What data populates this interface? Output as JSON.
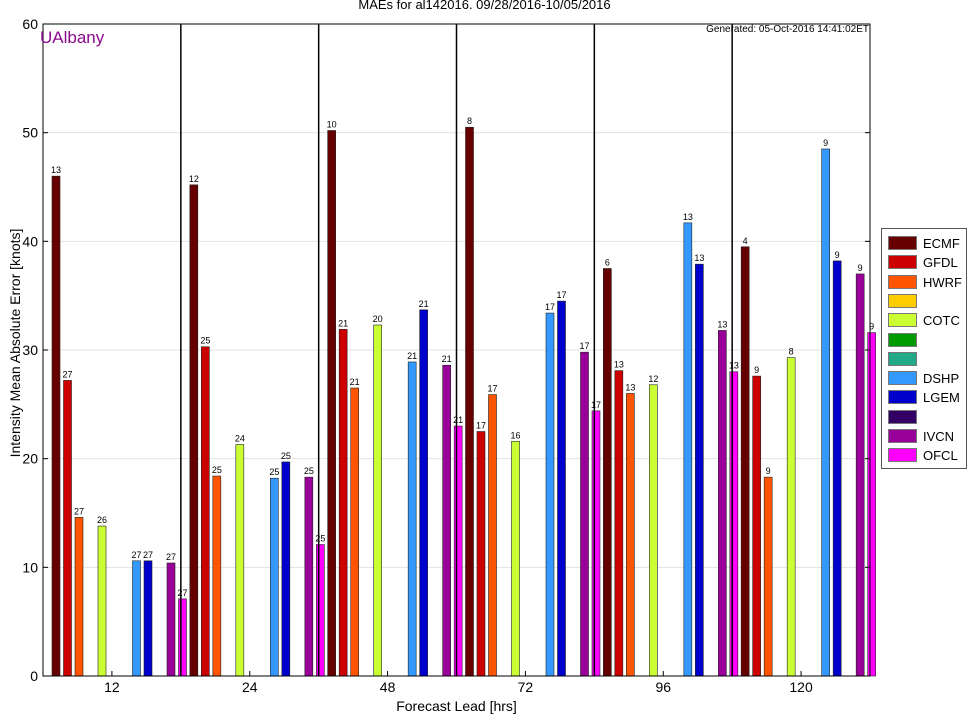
{
  "page": {
    "title": "MAEs for al142016. 09/28/2016-10/05/2016",
    "brand": "UAlbany",
    "generated": "Generated: 05-Oct-2016 14:41:02ET"
  },
  "colors": {
    "brand": "#8b0a8b",
    "ECMF": "#660000",
    "GFDL": "#cc0000",
    "HWRF": "#ff5500",
    "COTC": "#ccff33",
    "DSHP": "#3399ff",
    "LGEM": "#0000cc",
    "IVCN": "#990099",
    "OFCL": "#ff00ff"
  },
  "legend": [
    {
      "label": "ECMF",
      "color": "#660000"
    },
    {
      "label": "GFDL",
      "color": "#cc0000"
    },
    {
      "label": "HWRF",
      "color": "#ff5500"
    },
    {
      "label": "",
      "color": "#ffcc00"
    },
    {
      "label": "COTC",
      "color": "#ccff33"
    },
    {
      "label": "",
      "color": "#009900"
    },
    {
      "label": "",
      "color": "#22aa88"
    },
    {
      "label": "DSHP",
      "color": "#3399ff"
    },
    {
      "label": "LGEM",
      "color": "#0000cc"
    },
    {
      "label": "",
      "color": "#330066"
    },
    {
      "label": "IVCN",
      "color": "#990099"
    },
    {
      "label": "OFCL",
      "color": "#ff00ff"
    }
  ],
  "chart_data": {
    "type": "bar",
    "title": "MAEs for al142016. 09/28/2016-10/05/2016",
    "xlabel": "Forecast Lead [hrs]",
    "ylabel": "Intensity Mean Absolute Error [knots]",
    "ylim": [
      0,
      60
    ],
    "yticks": [
      0,
      10,
      20,
      30,
      40,
      50,
      60
    ],
    "grid": true,
    "legend_position": "right",
    "categories": [
      "12",
      "24",
      "48",
      "72",
      "96",
      "120"
    ],
    "slot_order": [
      "ECMF",
      "GFDL",
      "HWRF",
      "",
      "COTC",
      "",
      "",
      "DSHP",
      "LGEM",
      "",
      "IVCN",
      "OFCL"
    ],
    "series": [
      {
        "name": "ECMF",
        "color": "#660000",
        "values": [
          46.0,
          45.2,
          50.2,
          50.5,
          37.5,
          39.5
        ],
        "counts": [
          "13",
          "12",
          "10",
          "8",
          "6",
          "4"
        ]
      },
      {
        "name": "GFDL",
        "color": "#cc0000",
        "values": [
          27.2,
          30.3,
          31.9,
          22.5,
          28.1,
          27.6
        ],
        "counts": [
          "27",
          "25",
          "21",
          "17",
          "13",
          "9"
        ]
      },
      {
        "name": "HWRF",
        "color": "#ff5500",
        "values": [
          14.6,
          18.4,
          26.5,
          25.9,
          26.0,
          18.3
        ],
        "counts": [
          "27",
          "25",
          "21",
          "17",
          "13",
          "9"
        ]
      },
      {
        "name": "COTC",
        "color": "#ccff33",
        "values": [
          13.8,
          21.3,
          32.3,
          21.6,
          26.8,
          29.3
        ],
        "counts": [
          "26",
          "24",
          "20",
          "16",
          "12",
          "8"
        ]
      },
      {
        "name": "DSHP",
        "color": "#3399ff",
        "values": [
          10.6,
          18.2,
          28.9,
          33.4,
          41.7,
          48.5
        ],
        "counts": [
          "27",
          "25",
          "21",
          "17",
          "13",
          "9"
        ]
      },
      {
        "name": "LGEM",
        "color": "#0000cc",
        "values": [
          10.6,
          19.7,
          33.7,
          34.5,
          37.9,
          38.2
        ],
        "counts": [
          "27",
          "25",
          "21",
          "17",
          "13",
          "9"
        ]
      },
      {
        "name": "IVCN",
        "color": "#990099",
        "values": [
          10.4,
          18.3,
          28.6,
          29.8,
          31.8,
          37.0
        ],
        "counts": [
          "27",
          "25",
          "21",
          "17",
          "13",
          "9"
        ]
      },
      {
        "name": "OFCL",
        "color": "#ff00ff",
        "values": [
          7.1,
          12.1,
          23.0,
          24.4,
          28.0,
          31.6
        ],
        "counts": [
          "27",
          "25",
          "21",
          "17",
          "13",
          "9"
        ]
      }
    ]
  }
}
